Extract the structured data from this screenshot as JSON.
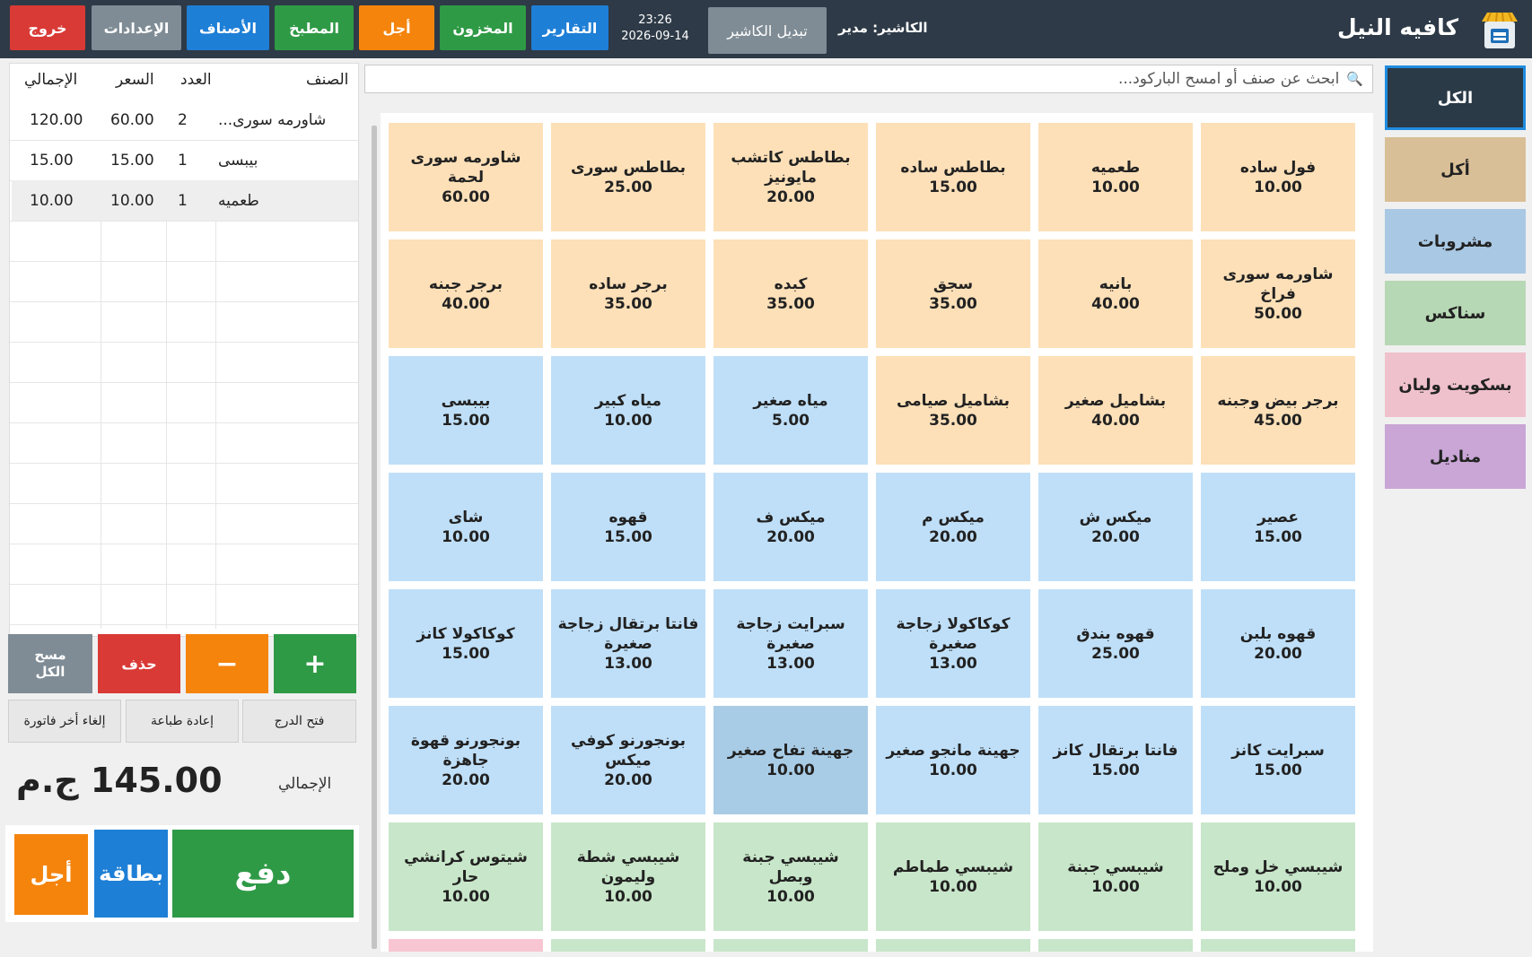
{
  "header": {
    "brand": "كافيه النيل",
    "cashier_label": "الكاشير: مدير",
    "switch_cashier": "تبديل الكاشير",
    "time": "23:26",
    "date": "2026-09-14",
    "buttons": {
      "exit": "خروج",
      "settings": "الإعدادات",
      "items": "الأصناف",
      "kitchen": "المطبخ",
      "credit": "أجل",
      "inventory": "المخزون",
      "reports": "التقارير"
    }
  },
  "categories": [
    {
      "label": "الكل",
      "color": "#2b3a47"
    },
    {
      "label": "أكل",
      "color": "#d9bf97"
    },
    {
      "label": "مشروبات",
      "color": "#a9c8e3"
    },
    {
      "label": "سناكس",
      "color": "#b7d8b5"
    },
    {
      "label": "بسكويت وليان",
      "color": "#efc1cc"
    },
    {
      "label": "مناديل",
      "color": "#c9a6d6"
    }
  ],
  "search": {
    "placeholder": "ابحث عن صنف أو امسح الباركود..."
  },
  "colors": {
    "food": "#fde0b8",
    "drink": "#bfdff8",
    "snack": "#c8e6c9",
    "selected": "#a9cce6",
    "snack_peek": "#f8c6d2"
  },
  "products": [
    {
      "name": "فول ساده",
      "price": "10.00",
      "type": "food"
    },
    {
      "name": "طعميه",
      "price": "10.00",
      "type": "food"
    },
    {
      "name": "بطاطس ساده",
      "price": "15.00",
      "type": "food"
    },
    {
      "name": "بطاطس كاتشب مايونيز",
      "price": "20.00",
      "type": "food"
    },
    {
      "name": "بطاطس سورى",
      "price": "25.00",
      "type": "food"
    },
    {
      "name": "شاورمه سورى لحمة",
      "price": "60.00",
      "type": "food"
    },
    {
      "name": "شاورمه سورى فراخ",
      "price": "50.00",
      "type": "food"
    },
    {
      "name": "بانيه",
      "price": "40.00",
      "type": "food"
    },
    {
      "name": "سجق",
      "price": "35.00",
      "type": "food"
    },
    {
      "name": "كبده",
      "price": "35.00",
      "type": "food"
    },
    {
      "name": "برجر ساده",
      "price": "35.00",
      "type": "food"
    },
    {
      "name": "برجر جبنه",
      "price": "40.00",
      "type": "food"
    },
    {
      "name": "برجر بيض وجبنه",
      "price": "45.00",
      "type": "food"
    },
    {
      "name": "بشاميل صغير",
      "price": "40.00",
      "type": "food"
    },
    {
      "name": "بشاميل صيامى",
      "price": "35.00",
      "type": "food"
    },
    {
      "name": "مياه صغير",
      "price": "5.00",
      "type": "drink"
    },
    {
      "name": "مياه كبير",
      "price": "10.00",
      "type": "drink"
    },
    {
      "name": "بيبسى",
      "price": "15.00",
      "type": "drink"
    },
    {
      "name": "عصير",
      "price": "15.00",
      "type": "drink"
    },
    {
      "name": "ميكس ش",
      "price": "20.00",
      "type": "drink"
    },
    {
      "name": "ميكس م",
      "price": "20.00",
      "type": "drink"
    },
    {
      "name": "ميكس ف",
      "price": "20.00",
      "type": "drink"
    },
    {
      "name": "قهوه",
      "price": "15.00",
      "type": "drink"
    },
    {
      "name": "شاى",
      "price": "10.00",
      "type": "drink"
    },
    {
      "name": "قهوه بلبن",
      "price": "20.00",
      "type": "drink"
    },
    {
      "name": "قهوه بندق",
      "price": "25.00",
      "type": "drink"
    },
    {
      "name": "كوكاكولا زجاجة صغيرة",
      "price": "13.00",
      "type": "drink"
    },
    {
      "name": "سبرايت زجاجة صغيرة",
      "price": "13.00",
      "type": "drink"
    },
    {
      "name": "فانتا برتقال زجاجة صغيرة",
      "price": "13.00",
      "type": "drink"
    },
    {
      "name": "كوكاكولا كانز",
      "price": "15.00",
      "type": "drink"
    },
    {
      "name": "سبرايت كانز",
      "price": "15.00",
      "type": "drink"
    },
    {
      "name": "فانتا برتقال كانز",
      "price": "15.00",
      "type": "drink"
    },
    {
      "name": "جهينة مانجو صغير",
      "price": "10.00",
      "type": "drink"
    },
    {
      "name": "جهينة تفاح صغير",
      "price": "10.00",
      "type": "selected"
    },
    {
      "name": "بونجورنو كوفي ميكس",
      "price": "20.00",
      "type": "drink"
    },
    {
      "name": "بونجورنو قهوة جاهزة",
      "price": "20.00",
      "type": "drink"
    },
    {
      "name": "شيبسي خل وملح",
      "price": "10.00",
      "type": "snack"
    },
    {
      "name": "شيبسي جبنة",
      "price": "10.00",
      "type": "snack"
    },
    {
      "name": "شيبسي طماطم",
      "price": "10.00",
      "type": "snack"
    },
    {
      "name": "شيبسي جبنة وبصل",
      "price": "10.00",
      "type": "snack"
    },
    {
      "name": "شيبسي شطة وليمون",
      "price": "10.00",
      "type": "snack"
    },
    {
      "name": "شيتوس كرانشي حار",
      "price": "10.00",
      "type": "snack"
    }
  ],
  "order": {
    "headers": {
      "item": "الصنف",
      "qty": "العدد",
      "price": "السعر",
      "total": "الإجمالي"
    },
    "rows": [
      {
        "item": "شاورمه سورى...",
        "qty": "2",
        "price": "60.00",
        "total": "120.00"
      },
      {
        "item": "بيبسى",
        "qty": "1",
        "price": "15.00",
        "total": "15.00"
      },
      {
        "item": "طعميه",
        "qty": "1",
        "price": "10.00",
        "total": "10.00"
      }
    ]
  },
  "actions": {
    "plus": "+",
    "minus": "−",
    "delete": "حذف",
    "clear_all": "مسح الكل",
    "open_drawer": "فتح الدرج",
    "reprint": "إعادة طباعة",
    "cancel_last": "إلغاء أخر فاتورة"
  },
  "totals": {
    "label": "الإجمالي",
    "value": "145.00 ج.م"
  },
  "payment": {
    "pay": "دفع",
    "card": "بطاقة",
    "credit": "أجل"
  }
}
